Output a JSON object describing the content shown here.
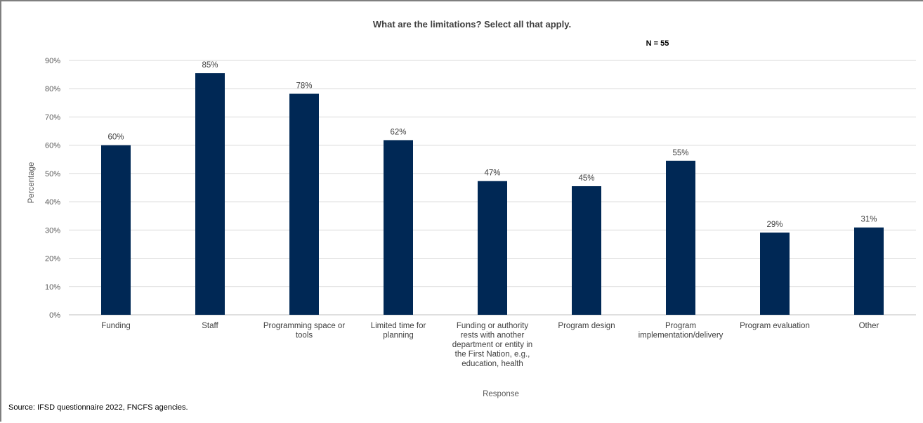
{
  "chart_data": {
    "type": "bar",
    "title": "What are the limitations? Select all that apply.",
    "annotation": "N = 55",
    "xlabel": "Response",
    "ylabel": "Percentage",
    "ylim": [
      0,
      90
    ],
    "yticks": [
      0,
      10,
      20,
      30,
      40,
      50,
      60,
      70,
      80,
      90
    ],
    "ytick_labels": [
      "0%",
      "10%",
      "20%",
      "30%",
      "40%",
      "50%",
      "60%",
      "70%",
      "80%",
      "90%"
    ],
    "grid": true,
    "legend": "none",
    "bar_color": "#002855",
    "categories": [
      [
        "Funding"
      ],
      [
        "Staff"
      ],
      [
        "Programming space or",
        "tools"
      ],
      [
        "Limited time for",
        "planning"
      ],
      [
        "Funding or authority",
        "rests with another",
        "department or entity in",
        "the First Nation, e.g.,",
        "education, health"
      ],
      [
        "Program design"
      ],
      [
        "Program",
        "implementation/delivery"
      ],
      [
        "Program evaluation"
      ],
      [
        "Other"
      ]
    ],
    "values": [
      60,
      85.5,
      78.2,
      61.8,
      47.3,
      45.5,
      54.5,
      29.1,
      30.9
    ],
    "data_labels": [
      "60%",
      "85%",
      "78%",
      "62%",
      "47%",
      "45%",
      "55%",
      "29%",
      "31%"
    ]
  },
  "source": "Source: IFSD questionnaire 2022, FNCFS agencies."
}
